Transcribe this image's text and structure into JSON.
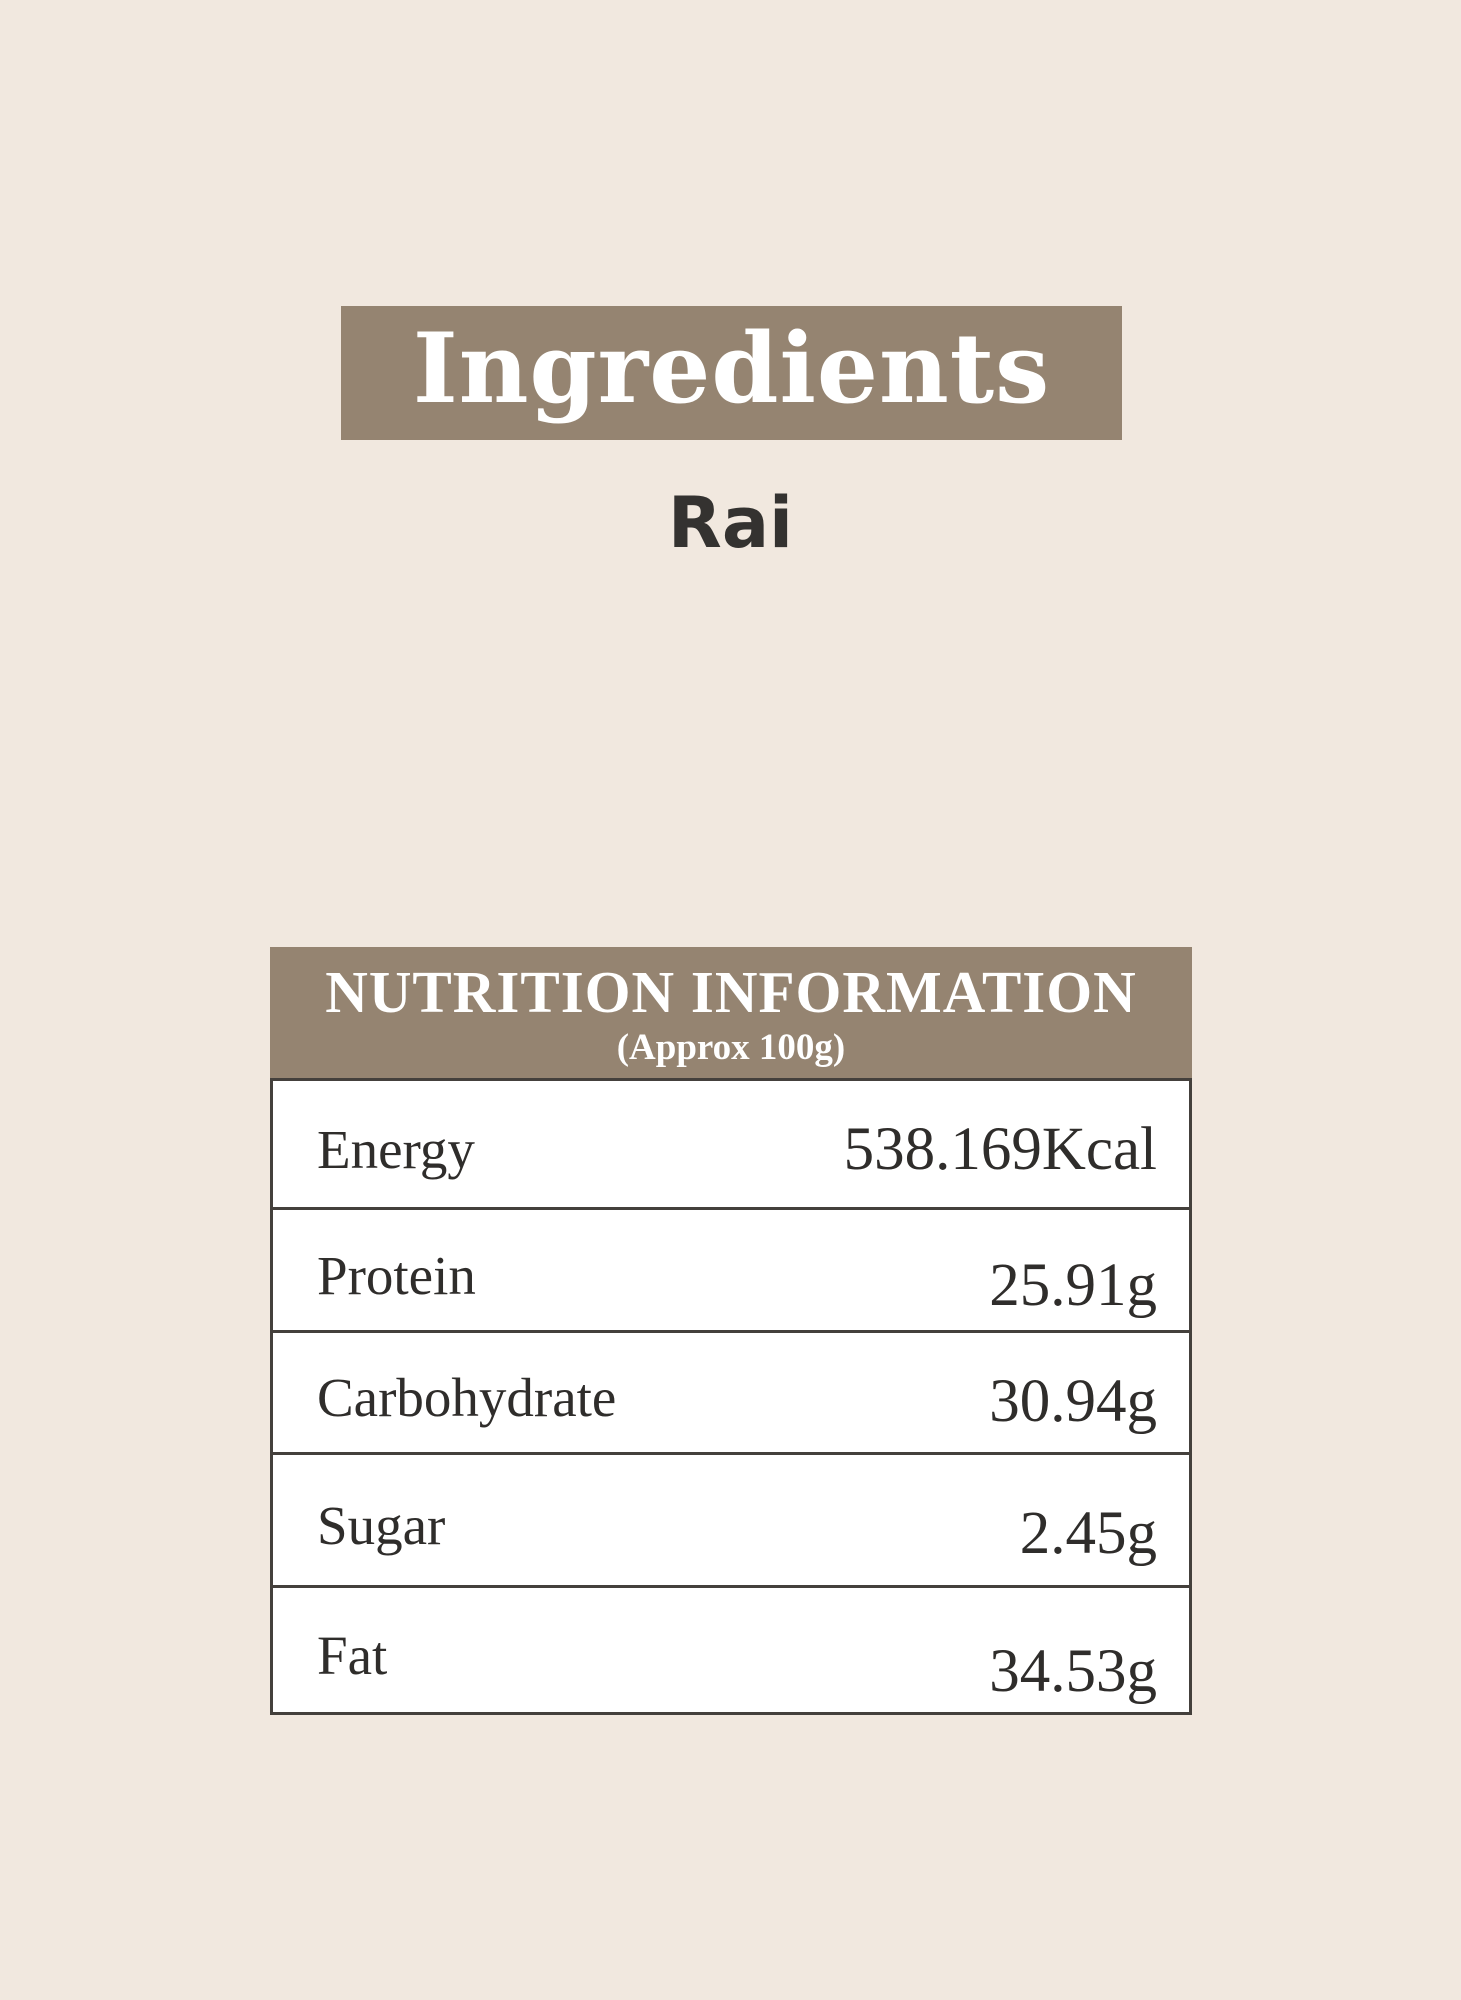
{
  "theme": {
    "background_color": "#f1e8df",
    "accent_color": "#958471",
    "text_color": "#2f2d2b",
    "banner_text_color": "#ffffff"
  },
  "ingredients": {
    "banner_title": "Ingredients",
    "item_name": "Rai"
  },
  "nutrition": {
    "title": "NUTRITION INFORMATION",
    "subtitle": "(Approx 100g)",
    "rows": [
      {
        "label": "Energy",
        "value": "538.169Kcal"
      },
      {
        "label": "Protein",
        "value": "25.91g"
      },
      {
        "label": "Carbohydrate",
        "value": "30.94g"
      },
      {
        "label": "Sugar",
        "value": "2.45g"
      },
      {
        "label": "Fat",
        "value": "34.53g"
      }
    ]
  }
}
